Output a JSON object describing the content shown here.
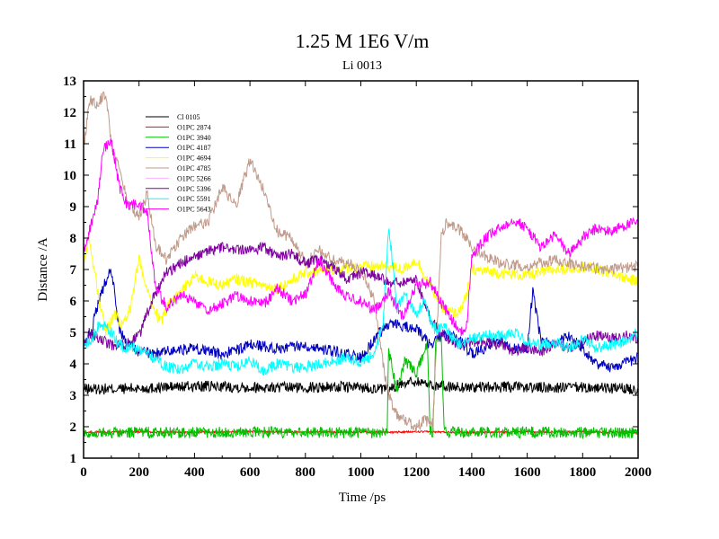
{
  "chart_data": {
    "type": "line",
    "title": "1.25 M 1E6 V/m",
    "subtitle": "Li 0013",
    "xlabel": "Time /ps",
    "ylabel": "Distance /A",
    "xlim": [
      0,
      2000
    ],
    "ylim": [
      1,
      13
    ],
    "xticks": [
      0,
      200,
      400,
      600,
      800,
      1000,
      1200,
      1400,
      1600,
      1800,
      2000
    ],
    "yticks": [
      1,
      2,
      3,
      4,
      5,
      6,
      7,
      8,
      9,
      10,
      11,
      12,
      13
    ],
    "grid": false,
    "legend_position": "top-left",
    "series": [
      {
        "name": "Cl 0105",
        "color": "#000000",
        "x": [
          0,
          100,
          200,
          300,
          400,
          500,
          600,
          700,
          800,
          900,
          1000,
          1050,
          1100,
          1150,
          1200,
          1250,
          1300,
          1400,
          1500,
          1600,
          1700,
          1800,
          1900,
          2000
        ],
        "values": [
          3.2,
          3.2,
          3.22,
          3.26,
          3.28,
          3.28,
          3.26,
          3.24,
          3.25,
          3.27,
          3.26,
          3.22,
          3.15,
          3.4,
          3.45,
          3.35,
          3.28,
          3.25,
          3.26,
          3.25,
          3.24,
          3.25,
          3.22,
          3.2
        ]
      },
      {
        "name": "O1PC 2874",
        "color": "#ff0000",
        "x": [
          0,
          200,
          400,
          600,
          800,
          1000,
          1100,
          1200,
          1300,
          1400,
          1600,
          1800,
          2000
        ],
        "values": [
          1.82,
          1.83,
          1.82,
          1.84,
          1.83,
          1.83,
          1.82,
          1.84,
          1.83,
          1.82,
          1.83,
          1.84,
          1.82
        ]
      },
      {
        "name": "O1PC 3940",
        "color": "#00c000",
        "x": [
          0,
          200,
          400,
          600,
          800,
          1000,
          1095,
          1100,
          1130,
          1160,
          1200,
          1240,
          1250,
          1260,
          1270,
          1290,
          1300,
          1400,
          1600,
          1800,
          2000
        ],
        "values": [
          1.8,
          1.82,
          1.81,
          1.83,
          1.82,
          1.8,
          1.8,
          4.4,
          3.2,
          4.1,
          3.7,
          4.6,
          1.85,
          1.82,
          4.7,
          4.8,
          1.84,
          1.82,
          1.83,
          1.82,
          1.8
        ]
      },
      {
        "name": "O1PC 4187",
        "color": "#0000c0",
        "x": [
          0,
          30,
          60,
          100,
          130,
          160,
          200,
          250,
          300,
          400,
          500,
          600,
          700,
          800,
          900,
          1000,
          1050,
          1100,
          1150,
          1200,
          1250,
          1300,
          1350,
          1400,
          1450,
          1500,
          1550,
          1600,
          1620,
          1650,
          1700,
          1750,
          1800,
          1850,
          1900,
          1950,
          2000
        ],
        "values": [
          4.6,
          5.1,
          6.2,
          7.0,
          5.1,
          4.6,
          4.4,
          4.3,
          4.4,
          4.5,
          4.3,
          4.6,
          4.5,
          4.6,
          4.4,
          4.2,
          4.8,
          5.3,
          5.2,
          5.1,
          4.6,
          5.0,
          4.8,
          4.3,
          4.5,
          4.8,
          4.5,
          4.5,
          6.3,
          4.7,
          4.6,
          4.9,
          4.5,
          4.0,
          3.9,
          4.0,
          4.2
        ]
      },
      {
        "name": "O1PC 4694",
        "color": "#ffff00",
        "x": [
          0,
          20,
          50,
          80,
          110,
          140,
          170,
          200,
          220,
          250,
          280,
          300,
          350,
          400,
          450,
          500,
          550,
          600,
          700,
          800,
          900,
          1000,
          1100,
          1150,
          1200,
          1250,
          1300,
          1350,
          1380,
          1400,
          1500,
          1600,
          1700,
          1800,
          1900,
          2000
        ],
        "values": [
          7.2,
          8.0,
          6.3,
          5.0,
          5.6,
          5.2,
          5.8,
          7.4,
          6.6,
          5.8,
          5.3,
          5.8,
          6.3,
          6.8,
          6.6,
          6.5,
          6.7,
          6.6,
          6.4,
          6.9,
          7.0,
          7.1,
          7.1,
          7.0,
          7.3,
          6.5,
          5.7,
          5.6,
          6.1,
          7.0,
          6.9,
          6.8,
          7.0,
          7.1,
          6.9,
          6.6
        ]
      },
      {
        "name": "O1PC 4785",
        "color": "#c09a8a",
        "x": [
          0,
          20,
          50,
          80,
          100,
          130,
          160,
          200,
          230,
          260,
          300,
          350,
          400,
          450,
          500,
          550,
          600,
          650,
          700,
          750,
          800,
          850,
          900,
          950,
          1000,
          1050,
          1080,
          1100,
          1130,
          1160,
          1200,
          1230,
          1260,
          1290,
          1310,
          1350,
          1380,
          1400,
          1500,
          1600,
          1700,
          1800,
          1900,
          2000
        ],
        "values": [
          10.8,
          12.4,
          12.3,
          12.6,
          11.0,
          10.2,
          9.1,
          8.7,
          9.4,
          7.8,
          7.3,
          8.0,
          8.4,
          8.5,
          9.6,
          9.0,
          10.5,
          9.5,
          8.2,
          8.0,
          7.2,
          7.6,
          7.3,
          7.2,
          7.0,
          6.0,
          4.0,
          3.0,
          2.4,
          2.2,
          2.0,
          2.2,
          2.1,
          8.1,
          8.5,
          8.3,
          8.0,
          7.7,
          7.2,
          7.1,
          7.3,
          7.1,
          7.0,
          7.1
        ]
      },
      {
        "name": "O1PC 5266",
        "color": "#ffb0ff",
        "x": [
          0,
          500,
          1000,
          1500,
          2000
        ],
        "values": [
          null,
          null,
          null,
          null,
          null
        ]
      },
      {
        "name": "O1PC 5396",
        "color": "#8000a0",
        "x": [
          0,
          20,
          50,
          80,
          100,
          150,
          200,
          250,
          300,
          350,
          400,
          450,
          500,
          550,
          600,
          650,
          700,
          750,
          800,
          850,
          900,
          950,
          1000,
          1050,
          1100,
          1150,
          1200,
          1250,
          1300,
          1350,
          1400,
          1450,
          1500,
          1550,
          1600,
          1650,
          1700,
          1750,
          1800,
          1850,
          1900,
          1950,
          2000
        ],
        "values": [
          4.5,
          5.0,
          4.8,
          4.7,
          4.6,
          4.6,
          4.9,
          6.1,
          6.9,
          7.2,
          7.4,
          7.6,
          7.7,
          7.6,
          7.6,
          7.7,
          7.4,
          7.5,
          7.2,
          7.3,
          7.1,
          6.7,
          6.9,
          6.8,
          6.6,
          6.6,
          6.7,
          5.4,
          4.9,
          4.6,
          4.7,
          4.7,
          4.6,
          4.4,
          4.5,
          4.4,
          4.6,
          4.5,
          4.7,
          4.9,
          4.8,
          4.9,
          4.8
        ]
      },
      {
        "name": "O1PC 5591",
        "color": "#00ffff",
        "x": [
          0,
          30,
          60,
          100,
          130,
          160,
          200,
          250,
          300,
          350,
          400,
          450,
          500,
          550,
          600,
          650,
          700,
          750,
          800,
          850,
          900,
          950,
          1000,
          1050,
          1080,
          1100,
          1110,
          1130,
          1160,
          1200,
          1230,
          1260,
          1300,
          1350,
          1400,
          1450,
          1500,
          1550,
          1600,
          1650,
          1700,
          1750,
          1800,
          1850,
          1900,
          1950,
          2000
        ],
        "values": [
          4.6,
          4.8,
          5.3,
          5.0,
          4.6,
          4.5,
          4.5,
          4.2,
          3.9,
          3.8,
          4.0,
          3.9,
          4.0,
          3.9,
          4.1,
          3.8,
          4.0,
          3.9,
          3.9,
          4.0,
          4.1,
          4.2,
          4.0,
          4.3,
          5.3,
          8.3,
          7.6,
          5.8,
          6.2,
          5.6,
          6.0,
          5.1,
          5.2,
          4.6,
          4.8,
          4.9,
          4.9,
          5.0,
          4.7,
          4.6,
          4.7,
          4.5,
          4.8,
          4.5,
          4.6,
          4.7,
          5.0
        ]
      },
      {
        "name": "O1PC 5643",
        "color": "#ff00ff",
        "x": [
          0,
          20,
          50,
          70,
          100,
          130,
          160,
          200,
          230,
          260,
          300,
          350,
          400,
          450,
          500,
          550,
          600,
          650,
          700,
          750,
          800,
          850,
          900,
          950,
          1000,
          1050,
          1100,
          1150,
          1200,
          1250,
          1300,
          1350,
          1380,
          1400,
          1450,
          1500,
          1550,
          1600,
          1650,
          1700,
          1750,
          1800,
          1850,
          1900,
          1950,
          2000
        ],
        "values": [
          7.5,
          8.2,
          9.2,
          10.8,
          11.1,
          9.6,
          9.0,
          9.1,
          8.8,
          6.4,
          5.8,
          6.2,
          6.0,
          5.7,
          5.9,
          6.2,
          6.0,
          5.9,
          6.4,
          6.0,
          6.2,
          7.3,
          6.6,
          6.1,
          6.0,
          5.7,
          6.3,
          5.5,
          6.5,
          6.6,
          5.8,
          5.1,
          5.0,
          7.4,
          8.0,
          8.3,
          8.6,
          8.3,
          7.7,
          8.1,
          7.5,
          8.0,
          8.3,
          8.2,
          8.4,
          8.5
        ]
      }
    ]
  }
}
